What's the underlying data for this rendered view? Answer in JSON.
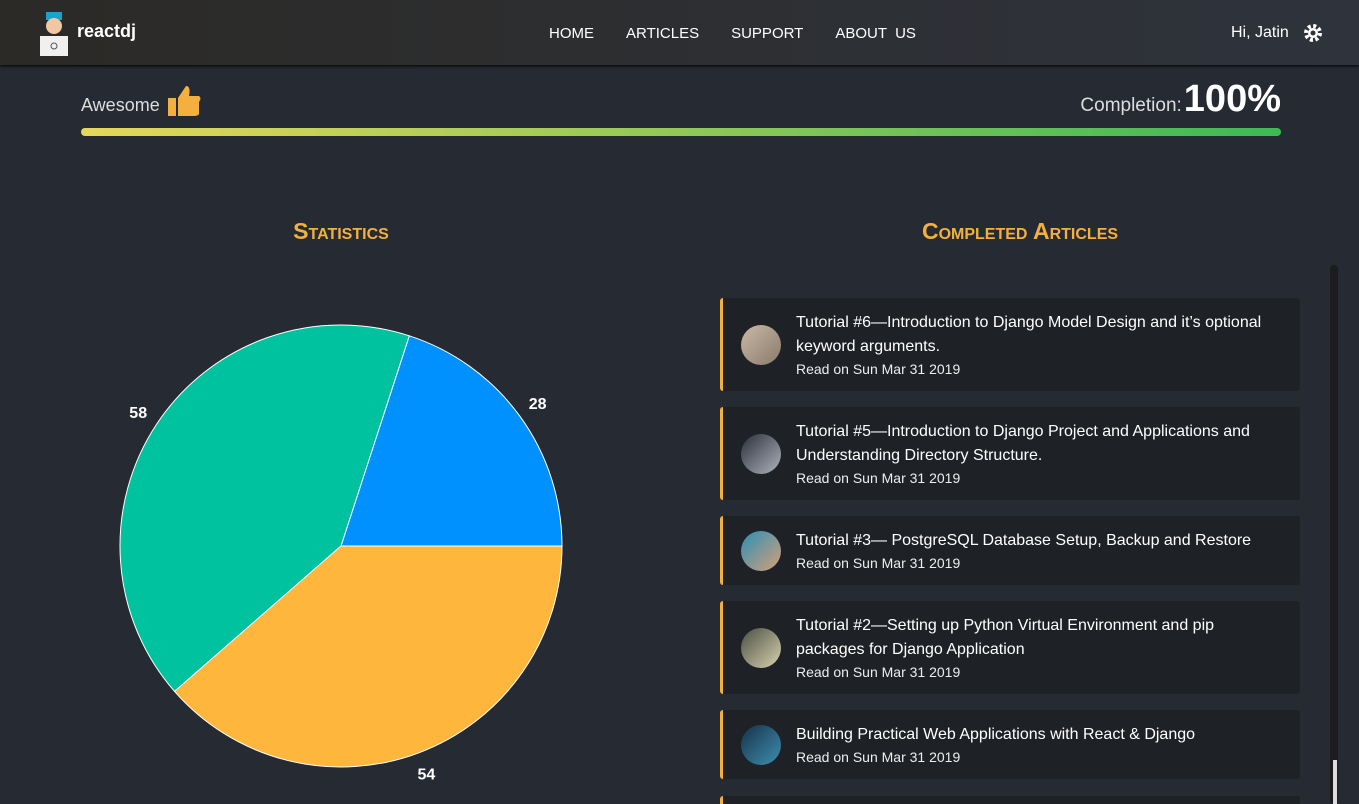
{
  "header": {
    "brand": "reactdj",
    "nav": [
      "HOME",
      "ARTICLES",
      "SUPPORT",
      "ABOUT  US"
    ],
    "greeting": "Hi, Jatin"
  },
  "progress": {
    "status": "Awesome",
    "completion_label": "Completion:",
    "completion": {
      "value": 100,
      "label": "100%"
    }
  },
  "stats_title": "Statistics",
  "chart_data": {
    "type": "pie",
    "values": [
      28,
      58,
      54
    ],
    "colors": [
      "#0091ff",
      "#00c29e",
      "#ffb63d"
    ]
  },
  "articles_title": "Completed Articles",
  "articles": [
    {
      "title": "Tutorial #6—Introduction to Django Model Design and it’s optional keyword arguments.",
      "date": "Read on Sun Mar 31 2019"
    },
    {
      "title": "Tutorial #5—Introduction to Django Project and Applications and Understanding Directory Structure.",
      "date": "Read on Sun Mar 31 2019"
    },
    {
      "title": "Tutorial #3— PostgreSQL Database Setup, Backup and Restore",
      "date": "Read on Sun Mar 31 2019"
    },
    {
      "title": "Tutorial #2—Setting up Python Virtual Environment and pip packages for Django Application",
      "date": "Read on Sun Mar 31 2019"
    },
    {
      "title": "Building Practical Web Applications with React & Django",
      "date": "Read on Sun Mar 31 2019"
    }
  ]
}
